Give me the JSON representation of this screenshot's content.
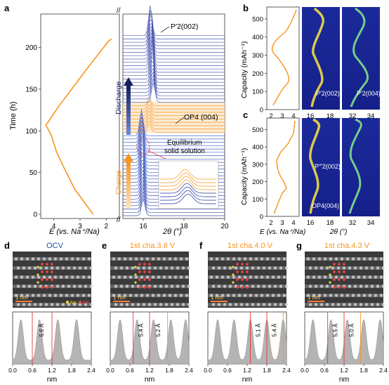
{
  "panel_letters": [
    "a",
    "b",
    "c",
    "d",
    "e",
    "f",
    "g"
  ],
  "panel_a": {
    "ylabel": "Time (h)",
    "xlabel_left": "E (vs. Na⁺/Na)",
    "xlabel_right": "2θ (°)",
    "annotations": {
      "peak_top": "P′2(002)",
      "op4": "OP4 (004)",
      "equilibrium_1": "Equilibrium",
      "equilibrium_2": "solid solution",
      "discharge": "Discharge",
      "charge": "Charge"
    },
    "colors": {
      "orange": "#F7941D",
      "blue": "#1F2E9C",
      "navy": "#14205C"
    }
  },
  "panel_b": {
    "ylabel": "Capacity (mAh⁻¹)",
    "peak_labels": [
      "P′2(002)",
      "P′2(004)"
    ]
  },
  "panel_c": {
    "ylabel": "Capacity (mAh⁻¹)",
    "peak_labels": [
      "P″′2(002)",
      "OP4(004)"
    ],
    "xlabel_left": "E (vs. Na⁺/Na)",
    "xlabel_right": "2θ (°)"
  },
  "stem_panels": [
    {
      "letter": "d",
      "title": "OCV",
      "title_color": "#1F4E9C",
      "scale": "1 nm",
      "markers": [
        [
          "5.6 Å",
          "red"
        ]
      ],
      "legend": [
        "Na",
        "Mn"
      ]
    },
    {
      "letter": "e",
      "title": "1st cha.3.8 V",
      "title_color": "#F7941D",
      "scale": "1 nm",
      "markers": [
        [
          "5.4 Å",
          "red"
        ],
        [
          "5.2 Å",
          "orange"
        ]
      ]
    },
    {
      "letter": "f",
      "title": "1st cha.4.0 V",
      "title_color": "#F7941D",
      "scale": "1 nm",
      "markers": [
        [
          "5.1 Å",
          "red"
        ],
        [
          "5.4 Å",
          "orange"
        ]
      ]
    },
    {
      "letter": "g",
      "title": "1st cha.4.3 V",
      "title_color": "#F7941D",
      "scale": "1 nm",
      "markers": [
        [
          "5.5 Å",
          "red"
        ],
        [
          "5.0 Å",
          "orange"
        ]
      ]
    }
  ],
  "profile_xlabel": "nm",
  "chart_data": [
    {
      "type": "line",
      "panel": "a-left",
      "ylabel": "Time (h)",
      "xlabel": "E (vs. Na⁺/Na)",
      "xlim": [
        4.5,
        1.5
      ],
      "ylim": [
        -5,
        240
      ],
      "x_ticks": [
        "4",
        "3",
        "2"
      ],
      "y_ticks": [
        "0",
        "50",
        "100",
        "150",
        "200"
      ],
      "series": [
        {
          "x": [
            2.5,
            3.2,
            3.6,
            3.9,
            4.1,
            4.3,
            3.8,
            3.2,
            2.6,
            2.1,
            1.9,
            1.8
          ],
          "y": [
            0,
            30,
            55,
            75,
            95,
            107,
            130,
            155,
            180,
            200,
            208,
            210
          ]
        }
      ]
    },
    {
      "type": "line",
      "panel": "a-right",
      "xlabel": "2θ (°)",
      "xlim": [
        15,
        20
      ],
      "x_ticks": [
        "16",
        "18",
        "20"
      ],
      "ylim": [
        -5,
        240
      ]
    },
    {
      "type": "line",
      "panel": "b",
      "ylabel": "Capacity (mAh⁻¹)",
      "x_ticks_e": [
        "2",
        "3",
        "4"
      ],
      "x_ticks_theta1": [
        "16",
        "18"
      ],
      "x_ticks_theta2": [
        "32",
        "34"
      ],
      "y_ticks": [
        "0",
        "100",
        "200",
        "300",
        "400",
        "500"
      ]
    },
    {
      "type": "line",
      "panel": "c",
      "ylabel": "Capacity (mAh⁻¹)",
      "x_ticks_e": [
        "2",
        "3",
        "4"
      ],
      "x_ticks_theta1": [
        "16",
        "18"
      ],
      "x_ticks_theta2": [
        "32",
        "34"
      ],
      "y_ticks": [
        "0",
        "100",
        "200",
        "300",
        "400",
        "500"
      ]
    },
    {
      "type": "area",
      "panel": "d-profile",
      "xlabel": "nm",
      "x_ticks": [
        "0.0",
        "0.6",
        "1.2",
        "1.8",
        "2.4"
      ],
      "xlim": [
        0,
        2.4
      ],
      "peaks": [
        0.25,
        0.82,
        1.38,
        1.95
      ],
      "markers": [
        0.6,
        1.2
      ],
      "marker_label": "5.6 Å"
    },
    {
      "type": "area",
      "panel": "e-profile",
      "xlabel": "nm",
      "x_ticks": [
        "0.0",
        "0.6",
        "1.2",
        "1.8",
        "2.4"
      ],
      "xlim": [
        0,
        2.4
      ],
      "peaks": [
        0.3,
        0.82,
        1.32,
        1.85,
        2.3
      ],
      "markers": [
        0.7,
        1.2,
        1.75
      ]
    },
    {
      "type": "area",
      "panel": "f-profile",
      "xlabel": "nm",
      "x_ticks": [
        "0.0",
        "0.6",
        "1.2",
        "1.8",
        "2.4"
      ],
      "xlim": [
        0,
        2.4
      ],
      "peaks": [
        0.3,
        0.8,
        1.3,
        1.8,
        2.3
      ],
      "markers": [
        1.3,
        1.8,
        2.3
      ]
    },
    {
      "type": "area",
      "panel": "g-profile",
      "xlabel": "nm",
      "x_ticks": [
        "0.0",
        "0.6",
        "1.2",
        "1.8",
        "2.4"
      ],
      "xlim": [
        0,
        2.4
      ],
      "peaks": [
        0.25,
        0.8,
        1.3,
        1.8,
        2.3
      ],
      "markers": [
        0.7,
        1.2,
        1.7
      ]
    }
  ]
}
